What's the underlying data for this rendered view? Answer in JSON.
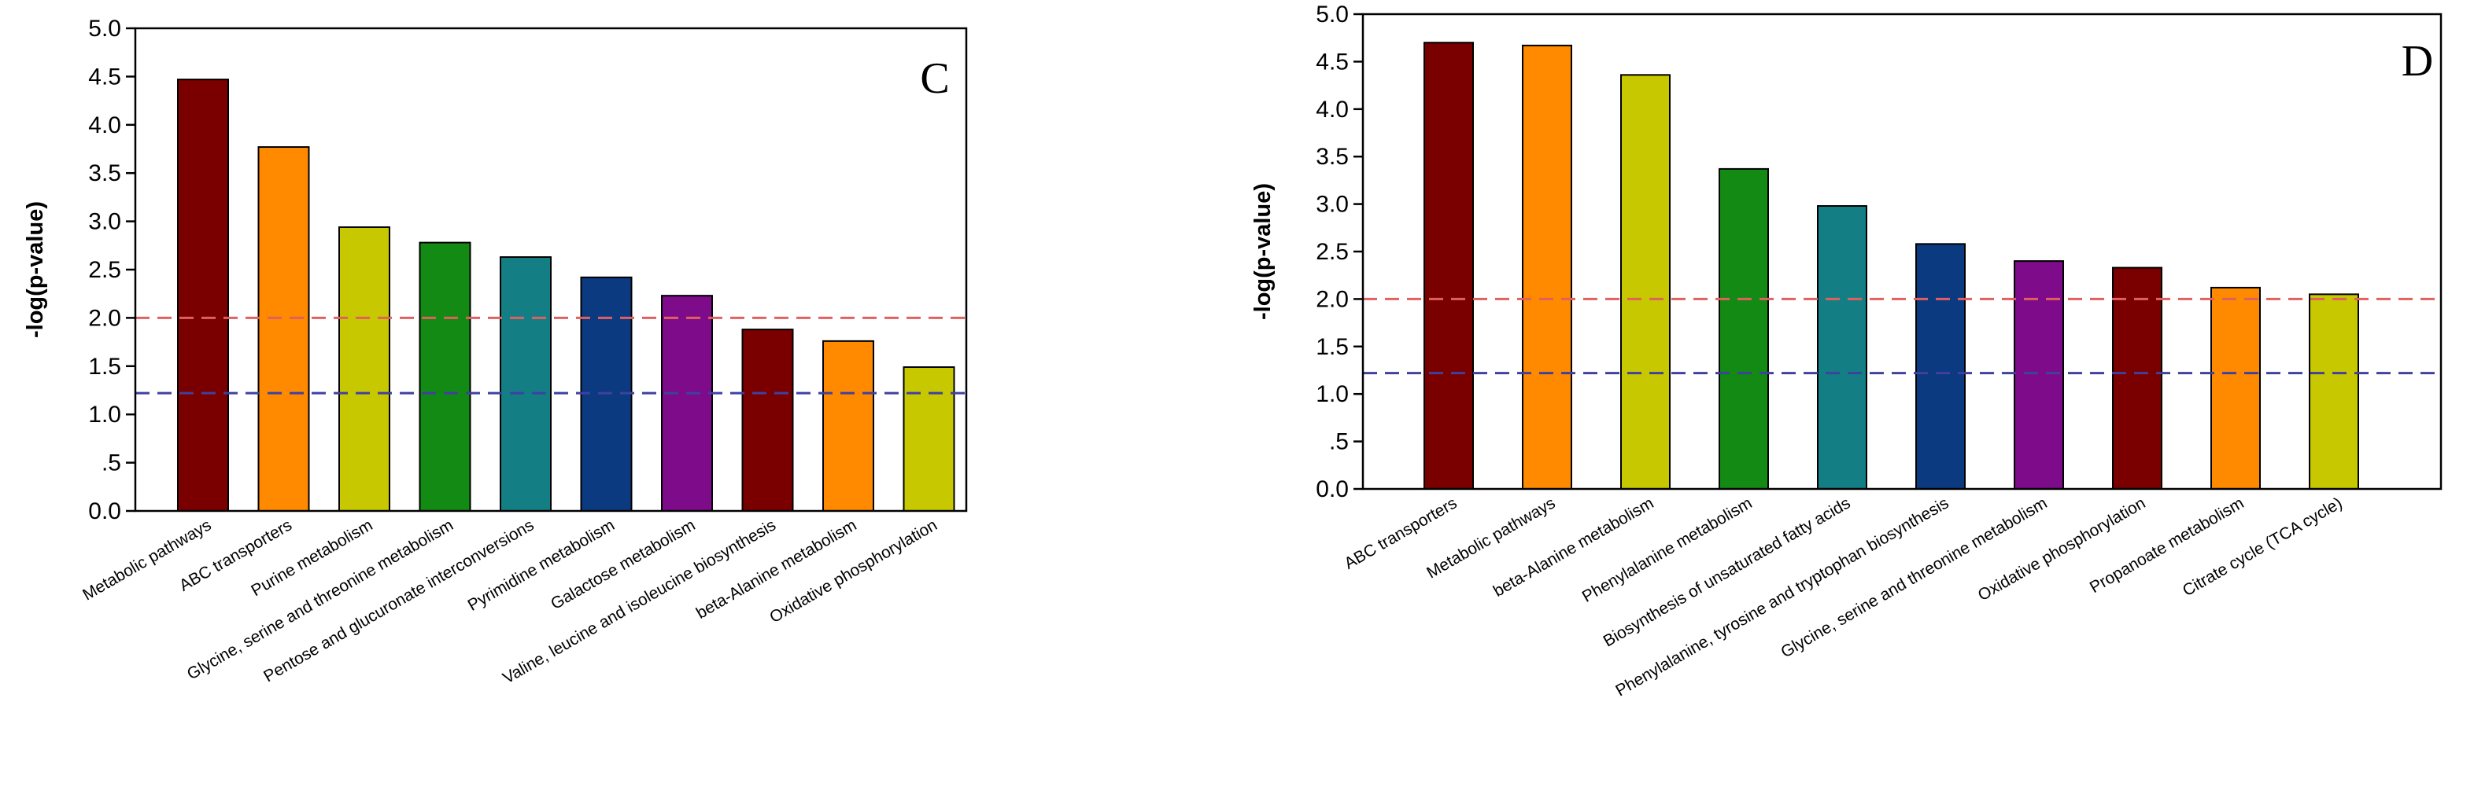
{
  "chart_data": [
    {
      "type": "bar",
      "panel_label": "C",
      "ylabel": "-log(p-value)",
      "ylim": [
        0,
        5
      ],
      "yticks": [
        {
          "value": 0,
          "label": "0.0"
        },
        {
          "value": 0.5,
          "label": ".5"
        },
        {
          "value": 1,
          "label": "1.0"
        },
        {
          "value": 1.5,
          "label": "1.5"
        },
        {
          "value": 2,
          "label": "2.0"
        },
        {
          "value": 2.5,
          "label": "2.5"
        },
        {
          "value": 3,
          "label": "3.0"
        },
        {
          "value": 3.5,
          "label": "3.5"
        },
        {
          "value": 4,
          "label": "4.0"
        },
        {
          "value": 4.5,
          "label": "4.5"
        },
        {
          "value": 5,
          "label": "5.0"
        }
      ],
      "categories": [
        "Metabolic pathways",
        "ABC transporters",
        "Purine metabolism",
        "Glycine, serine and threonine metabolism",
        "Pentose and glucuronate interconversions",
        "Pyrimidine metabolism",
        "Galactose metabolism",
        "Valine, leucine and isoleucine biosynthesis",
        "beta-Alanine metabolism",
        "Oxidative phosphorylation"
      ],
      "values": [
        4.47,
        3.77,
        2.94,
        2.78,
        2.63,
        2.42,
        2.23,
        1.88,
        1.76,
        1.49
      ],
      "bar_colors": [
        "#7a0000",
        "#ff8a00",
        "#c8c800",
        "#138a13",
        "#137f85",
        "#0b3a80",
        "#7d0b8a",
        "#7a0000",
        "#ff8a00",
        "#c8c800"
      ],
      "reference_lines": [
        {
          "value": 2.0,
          "color": "#e06060",
          "style": "dashed"
        },
        {
          "value": 1.22,
          "color": "#4040a0",
          "style": "dashed"
        }
      ],
      "grid": false
    },
    {
      "type": "bar",
      "panel_label": "D",
      "ylabel": "-log(p-value)",
      "ylim": [
        0,
        5
      ],
      "yticks": [
        {
          "value": 0,
          "label": "0.0"
        },
        {
          "value": 0.5,
          "label": ".5"
        },
        {
          "value": 1,
          "label": "1.0"
        },
        {
          "value": 1.5,
          "label": "1.5"
        },
        {
          "value": 2,
          "label": "2.0"
        },
        {
          "value": 2.5,
          "label": "2.5"
        },
        {
          "value": 3,
          "label": "3.0"
        },
        {
          "value": 3.5,
          "label": "3.5"
        },
        {
          "value": 4,
          "label": "4.0"
        },
        {
          "value": 4.5,
          "label": "4.5"
        },
        {
          "value": 5,
          "label": "5.0"
        }
      ],
      "categories": [
        "ABC transporters",
        "Metabolic pathways",
        "beta-Alanine metabolism",
        "Phenylalanine metabolism",
        "Biosynthesis of unsaturated fatty acids",
        "Phenylalanine, tyrosine and tryptophan biosynthesis",
        "Glycine, serine and threonine metabolism",
        "Oxidative phosphorylation",
        "Propanoate metabolism",
        "Citrate cycle (TCA cycle)"
      ],
      "values": [
        4.7,
        4.67,
        4.36,
        3.37,
        2.98,
        2.58,
        2.4,
        2.33,
        2.12,
        2.05
      ],
      "bar_colors": [
        "#7a0000",
        "#ff8a00",
        "#c8c800",
        "#138a13",
        "#137f85",
        "#0b3a80",
        "#7d0b8a",
        "#7a0000",
        "#ff8a00",
        "#c8c800"
      ],
      "reference_lines": [
        {
          "value": 2.0,
          "color": "#e06060",
          "style": "dashed"
        },
        {
          "value": 1.22,
          "color": "#4040a0",
          "style": "dashed"
        }
      ],
      "grid": false
    }
  ]
}
